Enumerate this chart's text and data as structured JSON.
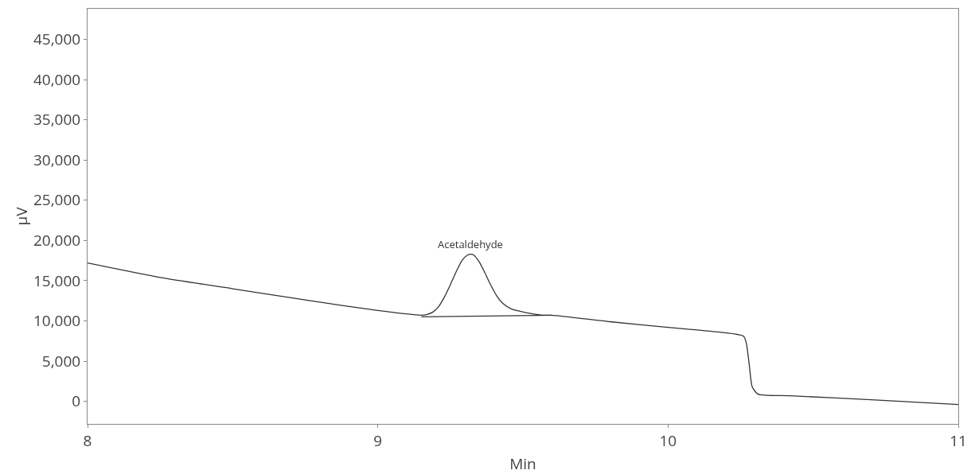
{
  "chart_data": {
    "type": "line",
    "xlabel": "Min",
    "ylabel": "µV",
    "xlim": [
      8,
      11
    ],
    "ylim": [
      -2800,
      48800
    ],
    "xticks": [
      8,
      9,
      10,
      11
    ],
    "yticks": [
      {
        "value": 0,
        "label": "0"
      },
      {
        "value": 5000,
        "label": "5,000"
      },
      {
        "value": 10000,
        "label": "10,000"
      },
      {
        "value": 15000,
        "label": "15,000"
      },
      {
        "value": 20000,
        "label": "20,000"
      },
      {
        "value": 25000,
        "label": "25,000"
      },
      {
        "value": 30000,
        "label": "30,000"
      },
      {
        "value": 35000,
        "label": "35,000"
      },
      {
        "value": 40000,
        "label": "40,000"
      },
      {
        "value": 45000,
        "label": "45,000"
      }
    ],
    "grid": false,
    "marker": "none",
    "line_style": "solid",
    "series": [
      {
        "color": "#333333",
        "x": [
          8.0,
          8.25,
          8.5,
          8.75,
          9.0,
          9.15,
          9.17,
          9.19,
          9.21,
          9.23,
          9.25,
          9.27,
          9.29,
          9.31,
          9.32,
          9.33,
          9.35,
          9.37,
          9.39,
          9.41,
          9.43,
          9.46,
          9.49,
          9.53,
          9.57,
          9.6,
          9.8,
          10.0,
          10.15,
          10.26,
          10.27,
          10.28,
          10.29,
          10.31,
          10.42,
          10.7,
          11.0
        ],
        "values": [
          17200,
          15400,
          14000,
          12600,
          11300,
          10700,
          10800,
          11100,
          11800,
          13000,
          14500,
          16100,
          17500,
          18200,
          18300,
          18200,
          17300,
          15900,
          14400,
          13100,
          12200,
          11500,
          11200,
          10900,
          10700,
          10700,
          9900,
          9200,
          8700,
          8100,
          7200,
          4500,
          1800,
          900,
          700,
          200,
          -400
        ]
      },
      {
        "color": "#333333",
        "x": [
          9.15,
          9.6
        ],
        "values": [
          10500,
          10700
        ]
      }
    ],
    "annotations": [
      {
        "text": "Acetaldehyde",
        "x": 9.32,
        "y": 18300
      }
    ]
  }
}
